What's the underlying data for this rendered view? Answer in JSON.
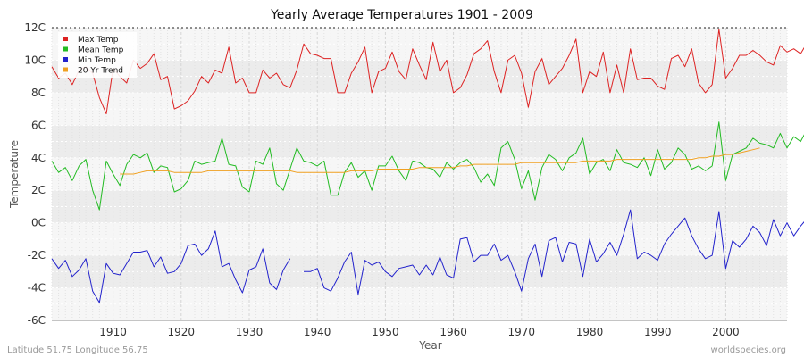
{
  "chart_data": {
    "type": "line",
    "title": "Yearly Average Temperatures 1901 - 2009",
    "xlabel": "Year",
    "ylabel": "Temperature",
    "xlim": [
      1901,
      2009
    ],
    "ylim": [
      -6,
      12
    ],
    "x_ticks": [
      1910,
      1920,
      1930,
      1940,
      1950,
      1960,
      1970,
      1980,
      1990,
      2000
    ],
    "y_ticks": [
      {
        "value": -6,
        "label": "-6C"
      },
      {
        "value": -4,
        "label": "-4C"
      },
      {
        "value": -2,
        "label": "-2C"
      },
      {
        "value": 0,
        "label": "0C"
      },
      {
        "value": 2,
        "label": "2C"
      },
      {
        "value": 4,
        "label": "4C"
      },
      {
        "value": 6,
        "label": "6C"
      },
      {
        "value": 8,
        "label": "8C"
      },
      {
        "value": 10,
        "label": "10C"
      },
      {
        "value": 12,
        "label": "12C"
      }
    ],
    "legend_position": "top-left",
    "series": [
      {
        "name": "Max Temp",
        "color": "#dd2222",
        "start_year": 1901,
        "values": [
          9.6,
          8.9,
          9.2,
          8.5,
          9.4,
          9.6,
          9.2,
          7.7,
          6.7,
          9.5,
          9.0,
          8.6,
          10.0,
          9.5,
          9.8,
          10.4,
          8.8,
          9.0,
          7.0,
          7.2,
          7.5,
          8.1,
          9.0,
          8.6,
          9.4,
          9.2,
          10.8,
          8.6,
          8.9,
          8.0,
          8.0,
          9.4,
          8.9,
          9.2,
          8.5,
          8.3,
          9.4,
          11.0,
          10.4,
          10.3,
          10.1,
          10.1,
          8.0,
          8.0,
          9.2,
          9.9,
          10.8,
          8.0,
          9.3,
          9.5,
          10.5,
          9.3,
          8.8,
          10.7,
          9.7,
          8.8,
          11.1,
          9.3,
          10.0,
          8.0,
          8.3,
          9.1,
          10.4,
          10.7,
          11.2,
          9.3,
          8.0,
          10.0,
          10.3,
          9.2,
          7.1,
          9.3,
          10.1,
          8.5,
          9.0,
          9.5,
          10.3,
          11.3,
          8.0,
          9.3,
          9.0,
          10.5,
          8.0,
          9.7,
          8.0,
          10.7,
          8.8,
          8.9,
          8.9,
          8.4,
          8.2,
          10.1,
          10.3,
          9.6,
          10.7,
          8.6,
          8.0,
          8.5,
          11.9,
          8.9,
          9.5,
          10.3,
          10.3,
          10.6,
          10.3,
          9.9,
          9.7,
          10.9,
          10.5,
          10.7,
          10.4,
          11.1,
          10.5
        ]
      },
      {
        "name": "Mean Temp",
        "color": "#22bb22",
        "start_year": 1901,
        "values": [
          3.8,
          3.1,
          3.4,
          2.6,
          3.5,
          3.9,
          2.0,
          0.8,
          3.8,
          3.0,
          2.3,
          3.6,
          4.2,
          4.0,
          4.3,
          3.1,
          3.5,
          3.4,
          1.9,
          2.1,
          2.6,
          3.8,
          3.6,
          3.7,
          3.8,
          5.2,
          3.6,
          3.5,
          2.2,
          1.9,
          3.8,
          3.6,
          4.6,
          2.4,
          2.0,
          3.3,
          4.6,
          3.8,
          3.7,
          3.5,
          3.8,
          1.7,
          1.7,
          3.1,
          3.7,
          2.8,
          3.2,
          2.0,
          3.5,
          3.5,
          4.1,
          3.2,
          2.6,
          3.8,
          3.7,
          3.4,
          3.3,
          2.8,
          3.7,
          3.3,
          3.7,
          3.9,
          3.4,
          2.5,
          3.0,
          2.3,
          4.6,
          5.0,
          3.9,
          2.1,
          3.2,
          1.4,
          3.4,
          4.2,
          3.9,
          3.2,
          4.0,
          4.3,
          5.2,
          3.0,
          3.7,
          3.9,
          3.2,
          4.5,
          3.7,
          3.6,
          3.4,
          4.0,
          2.9,
          4.5,
          3.3,
          3.7,
          4.6,
          4.2,
          3.3,
          3.5,
          3.2,
          3.5,
          6.2,
          2.6,
          4.2,
          4.4,
          4.6,
          5.2,
          4.9,
          4.8,
          4.6,
          5.5,
          4.6,
          5.3,
          5.0,
          5.8,
          4.7
        ]
      },
      {
        "name": "Min Temp",
        "color": "#2222cc",
        "start_year": 1901,
        "values": [
          -2.2,
          -2.8,
          -2.3,
          -3.3,
          -2.9,
          -2.2,
          -4.2,
          -4.9,
          -2.5,
          -3.1,
          -3.2,
          -2.5,
          -1.8,
          -1.8,
          -1.7,
          -2.7,
          -2.1,
          -3.1,
          -3.0,
          -2.5,
          -1.4,
          -1.3,
          -2.0,
          -1.6,
          -0.5,
          -2.7,
          -2.5,
          -3.5,
          -4.3,
          -2.9,
          -2.7,
          -1.6,
          -3.7,
          -4.1,
          -2.9,
          -2.2,
          null,
          -3.0,
          -3.0,
          -2.8,
          -4.0,
          -4.2,
          -3.4,
          -2.4,
          -1.8,
          -4.4,
          -2.3,
          -2.6,
          -2.4,
          -3.0,
          -3.3,
          -2.8,
          -2.7,
          -2.6,
          -3.2,
          -2.6,
          -3.2,
          -2.1,
          -3.2,
          -3.4,
          -1.0,
          -0.9,
          -2.4,
          -2.0,
          -2.0,
          -1.3,
          -2.3,
          -2.0,
          -3.0,
          -4.2,
          -2.2,
          -1.3,
          -3.3,
          -1.1,
          -0.9,
          -2.4,
          -1.2,
          -1.3,
          -3.3,
          -1.0,
          -2.4,
          -1.9,
          -1.2,
          -2.0,
          -0.7,
          0.8,
          -2.2,
          -1.8,
          -2.0,
          -2.3,
          -1.3,
          -0.7,
          -0.2,
          0.3,
          -0.8,
          -1.6,
          -2.2,
          -2.0,
          0.7,
          -2.8,
          -1.1,
          -1.5,
          -1.0,
          -0.2,
          -0.6,
          -1.4,
          0.2,
          -0.8,
          0.0,
          -0.8,
          -0.2,
          0.3,
          -0.8
        ]
      },
      {
        "name": "20 Yr Trend",
        "color": "#f0a020",
        "start_year": 1911,
        "values": [
          3.0,
          3.0,
          3.0,
          3.1,
          3.2,
          3.2,
          3.2,
          3.2,
          3.1,
          3.1,
          3.1,
          3.1,
          3.1,
          3.2,
          3.2,
          3.2,
          3.2,
          3.2,
          3.2,
          3.2,
          3.2,
          3.2,
          3.2,
          3.2,
          3.2,
          3.2,
          3.1,
          3.1,
          3.1,
          3.1,
          3.1,
          3.1,
          3.1,
          3.1,
          3.2,
          3.2,
          3.2,
          3.2,
          3.3,
          3.3,
          3.3,
          3.3,
          3.3,
          3.3,
          3.4,
          3.4,
          3.4,
          3.4,
          3.4,
          3.4,
          3.5,
          3.5,
          3.6,
          3.6,
          3.6,
          3.6,
          3.6,
          3.6,
          3.6,
          3.7,
          3.7,
          3.7,
          3.7,
          3.7,
          3.7,
          3.7,
          3.7,
          3.7,
          3.8,
          3.8,
          3.8,
          3.8,
          3.8,
          3.9,
          3.9,
          3.9,
          3.9,
          3.9,
          3.9,
          3.9,
          3.9,
          3.9,
          3.9,
          3.9,
          3.9,
          4.0,
          4.0,
          4.1,
          4.1,
          4.2,
          4.2,
          4.3,
          4.4,
          4.5,
          4.6
        ]
      }
    ],
    "footer_left": "Latitude 51.75 Longitude 56.75",
    "footer_right": "worldspecies.org"
  }
}
